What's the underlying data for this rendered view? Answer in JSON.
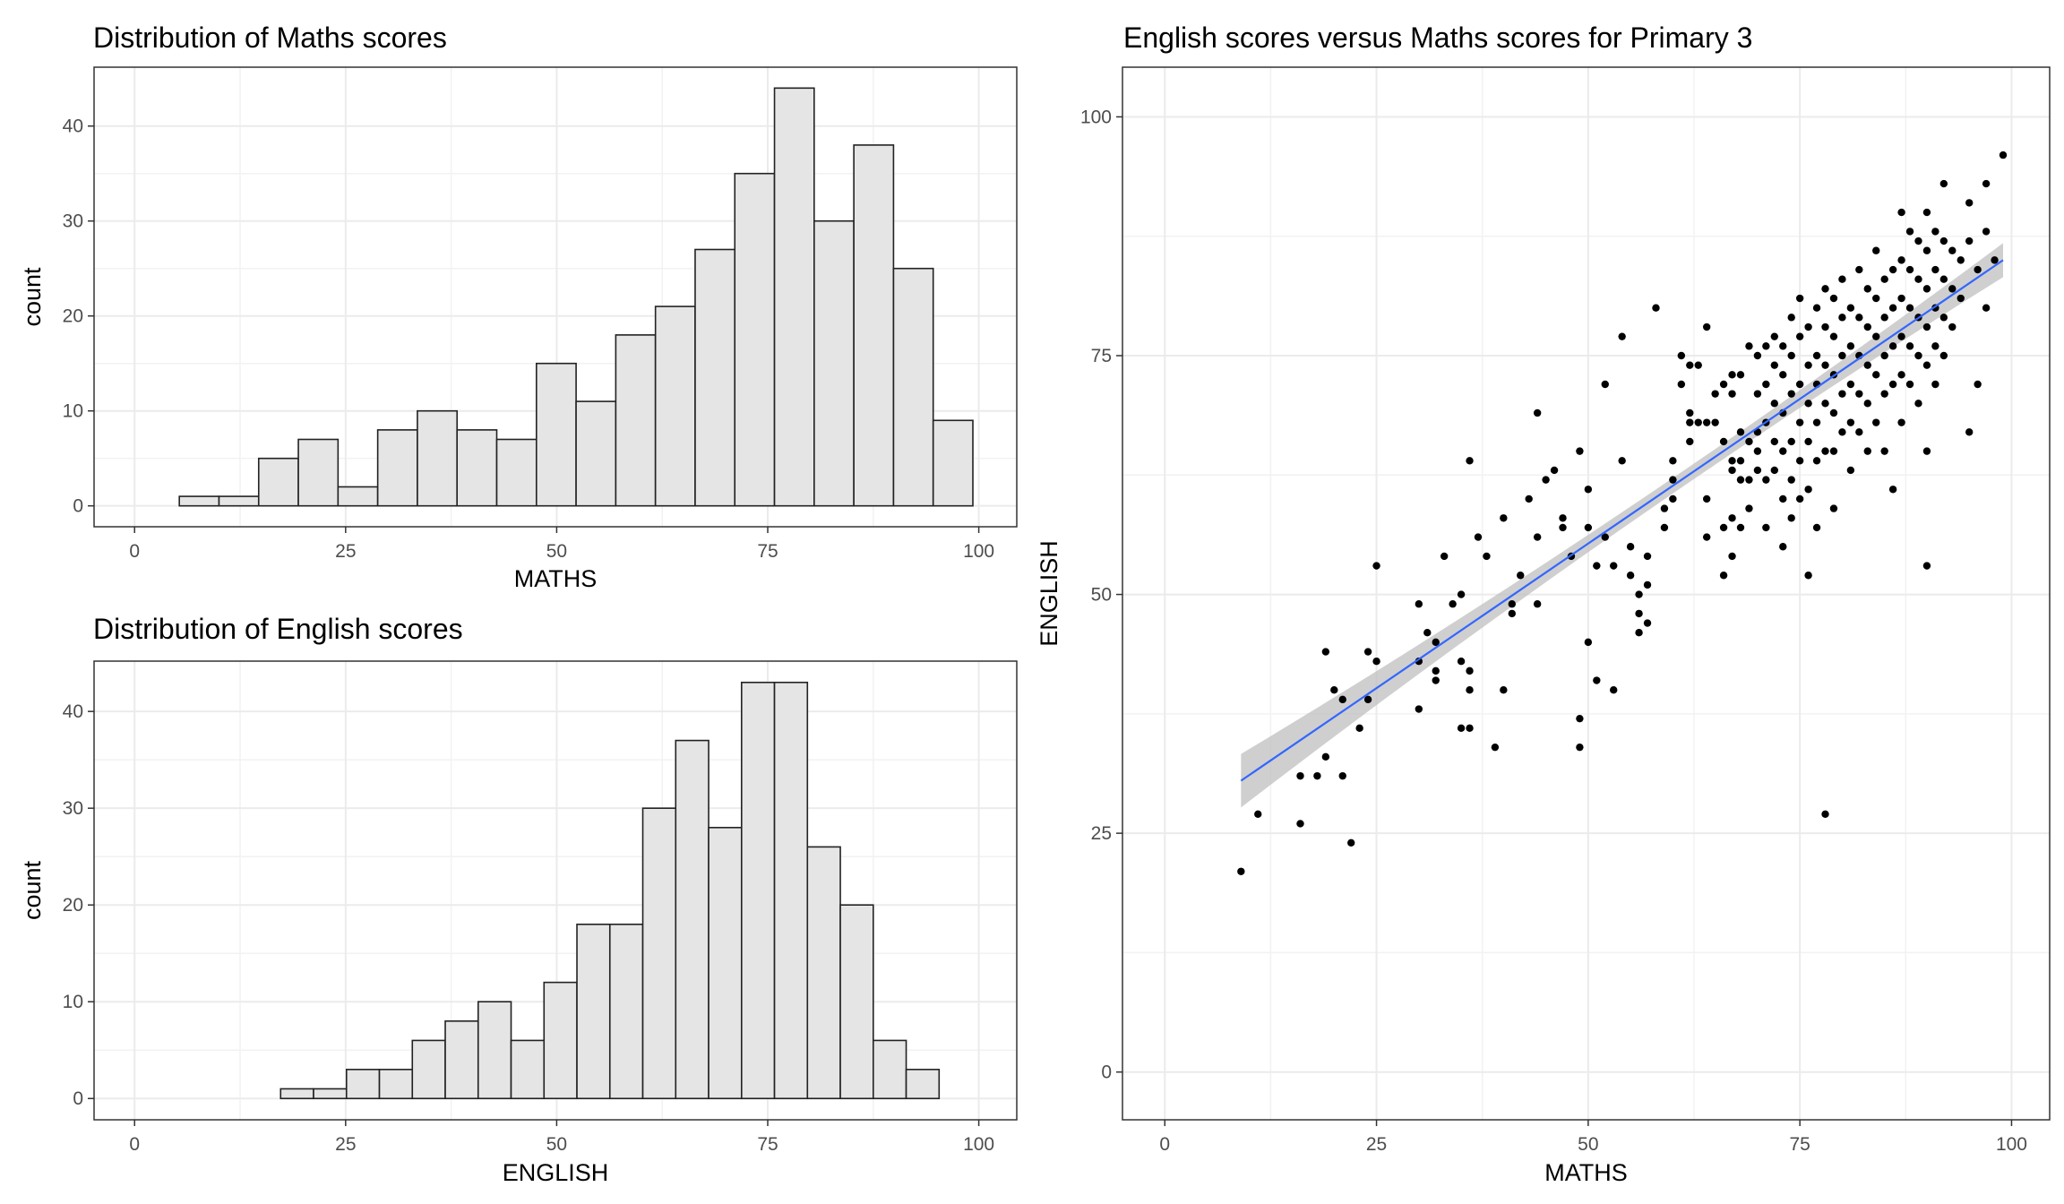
{
  "chart_data": [
    {
      "type": "bar",
      "title": "Distribution of Maths scores",
      "xlabel": "MATHS",
      "ylabel": "count",
      "xlim": [
        -4.8,
        104.5
      ],
      "ylim": [
        -2.2,
        46.2
      ],
      "x_ticks": [
        0,
        25,
        50,
        75,
        100
      ],
      "y_ticks": [
        0,
        10,
        20,
        30,
        40
      ],
      "bins": [
        {
          "x0": 5.3,
          "x1": 10.0,
          "count": 1
        },
        {
          "x0": 10.0,
          "x1": 14.7,
          "count": 1
        },
        {
          "x0": 14.7,
          "x1": 19.4,
          "count": 5
        },
        {
          "x0": 19.4,
          "x1": 24.1,
          "count": 7
        },
        {
          "x0": 24.1,
          "x1": 28.8,
          "count": 2
        },
        {
          "x0": 28.8,
          "x1": 33.5,
          "count": 8
        },
        {
          "x0": 33.5,
          "x1": 38.2,
          "count": 10
        },
        {
          "x0": 38.2,
          "x1": 42.9,
          "count": 8
        },
        {
          "x0": 42.9,
          "x1": 47.6,
          "count": 7
        },
        {
          "x0": 47.6,
          "x1": 52.3,
          "count": 15
        },
        {
          "x0": 52.3,
          "x1": 57.0,
          "count": 11
        },
        {
          "x0": 57.0,
          "x1": 61.7,
          "count": 18
        },
        {
          "x0": 61.7,
          "x1": 66.4,
          "count": 21
        },
        {
          "x0": 66.4,
          "x1": 71.1,
          "count": 27
        },
        {
          "x0": 71.1,
          "x1": 75.8,
          "count": 35
        },
        {
          "x0": 75.8,
          "x1": 80.5,
          "count": 44
        },
        {
          "x0": 80.5,
          "x1": 85.2,
          "count": 30
        },
        {
          "x0": 85.2,
          "x1": 89.9,
          "count": 38
        },
        {
          "x0": 89.9,
          "x1": 94.6,
          "count": 25
        },
        {
          "x0": 94.6,
          "x1": 99.3,
          "count": 9
        }
      ]
    },
    {
      "type": "bar",
      "title": "Distribution of English scores",
      "xlabel": "ENGLISH",
      "ylabel": "count",
      "xlim": [
        -4.8,
        104.5
      ],
      "ylim": [
        -2.2,
        45.2
      ],
      "x_ticks": [
        0,
        25,
        50,
        75,
        100
      ],
      "y_ticks": [
        0,
        10,
        20,
        30,
        40
      ],
      "bins": [
        {
          "x0": 17.3,
          "x1": 21.2,
          "count": 1
        },
        {
          "x0": 21.2,
          "x1": 25.1,
          "count": 1
        },
        {
          "x0": 25.1,
          "x1": 29.0,
          "count": 3
        },
        {
          "x0": 29.0,
          "x1": 32.9,
          "count": 3
        },
        {
          "x0": 32.9,
          "x1": 36.8,
          "count": 6
        },
        {
          "x0": 36.8,
          "x1": 40.7,
          "count": 8
        },
        {
          "x0": 40.7,
          "x1": 44.6,
          "count": 10
        },
        {
          "x0": 44.6,
          "x1": 48.5,
          "count": 6
        },
        {
          "x0": 48.5,
          "x1": 52.4,
          "count": 12
        },
        {
          "x0": 52.4,
          "x1": 56.3,
          "count": 18
        },
        {
          "x0": 56.3,
          "x1": 60.2,
          "count": 18
        },
        {
          "x0": 60.2,
          "x1": 64.1,
          "count": 30
        },
        {
          "x0": 64.1,
          "x1": 68.0,
          "count": 37
        },
        {
          "x0": 68.0,
          "x1": 71.9,
          "count": 28
        },
        {
          "x0": 71.9,
          "x1": 75.8,
          "count": 43
        },
        {
          "x0": 75.8,
          "x1": 79.7,
          "count": 43
        },
        {
          "x0": 79.7,
          "x1": 83.6,
          "count": 26
        },
        {
          "x0": 83.6,
          "x1": 87.5,
          "count": 20
        },
        {
          "x0": 87.5,
          "x1": 91.4,
          "count": 6
        },
        {
          "x0": 91.4,
          "x1": 95.3,
          "count": 3
        }
      ]
    },
    {
      "type": "scatter",
      "title": "English scores versus Maths scores for Primary 3",
      "xlabel": "MATHS",
      "ylabel": "ENGLISH",
      "xlim": [
        -5,
        104.5
      ],
      "ylim": [
        -5,
        105.2
      ],
      "x_ticks": [
        0,
        25,
        50,
        75,
        100
      ],
      "y_ticks": [
        0,
        25,
        50,
        75,
        100
      ],
      "smooth": {
        "method": "lm",
        "color": "#3366FF",
        "x": [
          9,
          99
        ],
        "y": [
          30.5,
          85.0
        ],
        "ci_halfwidth": [
          2.8,
          1.8
        ],
        "band_color": "#BFBFBF"
      },
      "points": [
        [
          9,
          21
        ],
        [
          11,
          27
        ],
        [
          16,
          26
        ],
        [
          16,
          31
        ],
        [
          18,
          31
        ],
        [
          19,
          44
        ],
        [
          19,
          33
        ],
        [
          20,
          40
        ],
        [
          21,
          39
        ],
        [
          21,
          31
        ],
        [
          22,
          24
        ],
        [
          23,
          36
        ],
        [
          24,
          44
        ],
        [
          24,
          39
        ],
        [
          25,
          53
        ],
        [
          25,
          43
        ],
        [
          30,
          49
        ],
        [
          30,
          43
        ],
        [
          30,
          38
        ],
        [
          31,
          46
        ],
        [
          32,
          45
        ],
        [
          32,
          42
        ],
        [
          32,
          41
        ],
        [
          33,
          54
        ],
        [
          34,
          49
        ],
        [
          35,
          50
        ],
        [
          35,
          43
        ],
        [
          35,
          36
        ],
        [
          36,
          64
        ],
        [
          36,
          42
        ],
        [
          36,
          40
        ],
        [
          36,
          36
        ],
        [
          37,
          56
        ],
        [
          38,
          54
        ],
        [
          39,
          34
        ],
        [
          40,
          58
        ],
        [
          40,
          40
        ],
        [
          41,
          49
        ],
        [
          41,
          48
        ],
        [
          42,
          52
        ],
        [
          43,
          60
        ],
        [
          44,
          56
        ],
        [
          44,
          69
        ],
        [
          44,
          49
        ],
        [
          45,
          62
        ],
        [
          46,
          63
        ],
        [
          47,
          58
        ],
        [
          47,
          57
        ],
        [
          48,
          54
        ],
        [
          49,
          65
        ],
        [
          49,
          37
        ],
        [
          49,
          34
        ],
        [
          50,
          61
        ],
        [
          50,
          57
        ],
        [
          50,
          45
        ],
        [
          51,
          53
        ],
        [
          51,
          41
        ],
        [
          52,
          72
        ],
        [
          52,
          56
        ],
        [
          53,
          53
        ],
        [
          53,
          40
        ],
        [
          54,
          77
        ],
        [
          54,
          64
        ],
        [
          55,
          55
        ],
        [
          55,
          52
        ],
        [
          56,
          50
        ],
        [
          56,
          48
        ],
        [
          56,
          46
        ],
        [
          57,
          54
        ],
        [
          57,
          51
        ],
        [
          57,
          47
        ],
        [
          58,
          80
        ],
        [
          59,
          59
        ],
        [
          59,
          57
        ],
        [
          60,
          64
        ],
        [
          60,
          62
        ],
        [
          60,
          60
        ],
        [
          61,
          75
        ],
        [
          61,
          72
        ],
        [
          62,
          74
        ],
        [
          62,
          69
        ],
        [
          62,
          68
        ],
        [
          62,
          66
        ],
        [
          63,
          74
        ],
        [
          63,
          68
        ],
        [
          64,
          78
        ],
        [
          64,
          68
        ],
        [
          64,
          60
        ],
        [
          64,
          56
        ],
        [
          65,
          71
        ],
        [
          65,
          68
        ],
        [
          66,
          72
        ],
        [
          66,
          66
        ],
        [
          66,
          57
        ],
        [
          66,
          52
        ],
        [
          67,
          73
        ],
        [
          67,
          71
        ],
        [
          67,
          64
        ],
        [
          67,
          63
        ],
        [
          67,
          58
        ],
        [
          67,
          54
        ],
        [
          68,
          73
        ],
        [
          68,
          67
        ],
        [
          68,
          64
        ],
        [
          68,
          62
        ],
        [
          68,
          57
        ],
        [
          69,
          76
        ],
        [
          69,
          66
        ],
        [
          69,
          62
        ],
        [
          69,
          59
        ],
        [
          70,
          75
        ],
        [
          70,
          71
        ],
        [
          70,
          67
        ],
        [
          70,
          65
        ],
        [
          70,
          63
        ],
        [
          71,
          76
        ],
        [
          71,
          72
        ],
        [
          71,
          68
        ],
        [
          71,
          62
        ],
        [
          71,
          57
        ],
        [
          72,
          77
        ],
        [
          72,
          74
        ],
        [
          72,
          70
        ],
        [
          72,
          66
        ],
        [
          72,
          63
        ],
        [
          73,
          76
        ],
        [
          73,
          73
        ],
        [
          73,
          69
        ],
        [
          73,
          65
        ],
        [
          73,
          60
        ],
        [
          73,
          55
        ],
        [
          74,
          79
        ],
        [
          74,
          75
        ],
        [
          74,
          71
        ],
        [
          74,
          66
        ],
        [
          74,
          62
        ],
        [
          74,
          58
        ],
        [
          75,
          81
        ],
        [
          75,
          77
        ],
        [
          75,
          72
        ],
        [
          75,
          68
        ],
        [
          75,
          64
        ],
        [
          75,
          60
        ],
        [
          76,
          78
        ],
        [
          76,
          74
        ],
        [
          76,
          70
        ],
        [
          76,
          66
        ],
        [
          76,
          61
        ],
        [
          76,
          52
        ],
        [
          77,
          80
        ],
        [
          77,
          75
        ],
        [
          77,
          72
        ],
        [
          77,
          68
        ],
        [
          77,
          64
        ],
        [
          77,
          57
        ],
        [
          78,
          82
        ],
        [
          78,
          78
        ],
        [
          78,
          74
        ],
        [
          78,
          70
        ],
        [
          78,
          65
        ],
        [
          78,
          27
        ],
        [
          79,
          81
        ],
        [
          79,
          77
        ],
        [
          79,
          73
        ],
        [
          79,
          69
        ],
        [
          79,
          65
        ],
        [
          79,
          59
        ],
        [
          80,
          83
        ],
        [
          80,
          79
        ],
        [
          80,
          75
        ],
        [
          80,
          71
        ],
        [
          80,
          67
        ],
        [
          81,
          80
        ],
        [
          81,
          76
        ],
        [
          81,
          72
        ],
        [
          81,
          68
        ],
        [
          81,
          63
        ],
        [
          82,
          84
        ],
        [
          82,
          79
        ],
        [
          82,
          75
        ],
        [
          82,
          71
        ],
        [
          82,
          67
        ],
        [
          83,
          82
        ],
        [
          83,
          78
        ],
        [
          83,
          74
        ],
        [
          83,
          70
        ],
        [
          83,
          65
        ],
        [
          84,
          86
        ],
        [
          84,
          81
        ],
        [
          84,
          77
        ],
        [
          84,
          73
        ],
        [
          84,
          68
        ],
        [
          85,
          83
        ],
        [
          85,
          79
        ],
        [
          85,
          75
        ],
        [
          85,
          71
        ],
        [
          85,
          65
        ],
        [
          86,
          84
        ],
        [
          86,
          80
        ],
        [
          86,
          76
        ],
        [
          86,
          72
        ],
        [
          86,
          61
        ],
        [
          87,
          90
        ],
        [
          87,
          85
        ],
        [
          87,
          81
        ],
        [
          87,
          77
        ],
        [
          87,
          73
        ],
        [
          87,
          68
        ],
        [
          88,
          88
        ],
        [
          88,
          84
        ],
        [
          88,
          80
        ],
        [
          88,
          76
        ],
        [
          88,
          72
        ],
        [
          89,
          87
        ],
        [
          89,
          83
        ],
        [
          89,
          79
        ],
        [
          89,
          75
        ],
        [
          89,
          70
        ],
        [
          90,
          90
        ],
        [
          90,
          86
        ],
        [
          90,
          82
        ],
        [
          90,
          78
        ],
        [
          90,
          74
        ],
        [
          90,
          65
        ],
        [
          90,
          53
        ],
        [
          91,
          88
        ],
        [
          91,
          84
        ],
        [
          91,
          80
        ],
        [
          91,
          76
        ],
        [
          91,
          72
        ],
        [
          92,
          93
        ],
        [
          92,
          87
        ],
        [
          92,
          83
        ],
        [
          92,
          79
        ],
        [
          92,
          75
        ],
        [
          93,
          86
        ],
        [
          93,
          82
        ],
        [
          93,
          78
        ],
        [
          94,
          85
        ],
        [
          94,
          81
        ],
        [
          95,
          91
        ],
        [
          95,
          87
        ],
        [
          95,
          67
        ],
        [
          96,
          84
        ],
        [
          96,
          72
        ],
        [
          97,
          93
        ],
        [
          97,
          88
        ],
        [
          97,
          80
        ],
        [
          98,
          85
        ],
        [
          99,
          96
        ]
      ]
    }
  ]
}
